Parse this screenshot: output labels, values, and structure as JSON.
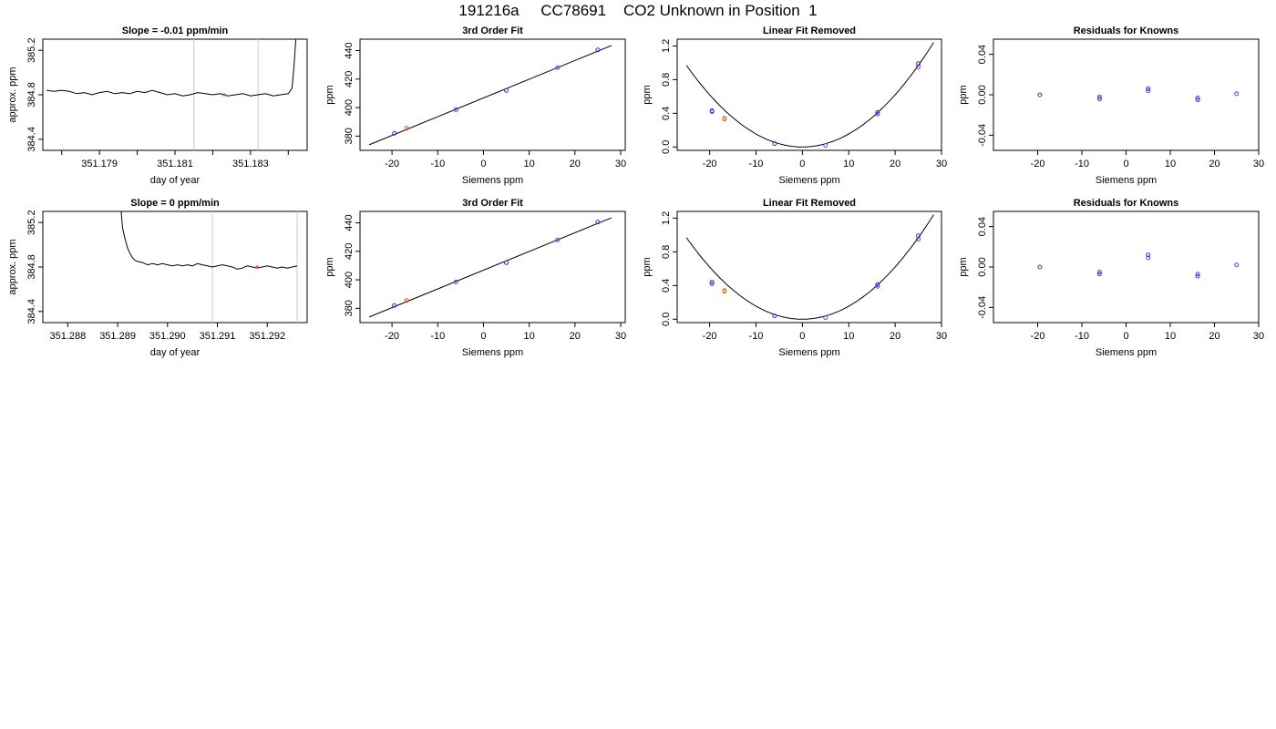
{
  "header": {
    "run_id": "191216a",
    "tank_id": "CC78691",
    "description": "CO2 Unknown in Position  1"
  },
  "colors": {
    "trace": "#000000",
    "marker": "#ff4040",
    "vline": "#c8c8c8",
    "known_blue": "#2a34d8",
    "known_purple": "#8a28e8",
    "unknown_red": "#f04010",
    "unknown_orange": "#f08020"
  },
  "chart_data": [
    {
      "id": "p11",
      "type": "line",
      "title": "Slope =  -0.01  ppm/min",
      "xlabel": "day of year",
      "ylabel": "approx. ppm",
      "xlim": [
        351.1775,
        351.1845
      ],
      "ylim": [
        384.3,
        385.3
      ],
      "xticks": [
        351.178,
        351.179,
        351.18,
        351.181,
        351.182,
        351.183,
        351.184
      ],
      "xticklabels": [
        "",
        "351.179",
        "",
        "351.181",
        "",
        "351.183",
        ""
      ],
      "yticks": [
        384.4,
        384.8,
        385.2
      ],
      "yticklabels": [
        "384.4",
        "384.8",
        "385.2"
      ],
      "trace": [
        [
          351.1776,
          384.84
        ],
        [
          351.1778,
          384.83
        ],
        [
          351.178,
          384.84
        ],
        [
          351.1782,
          384.83
        ],
        [
          351.1784,
          384.81
        ],
        [
          351.1786,
          384.82
        ],
        [
          351.1788,
          384.8
        ],
        [
          351.179,
          384.82
        ],
        [
          351.1792,
          384.83
        ],
        [
          351.1794,
          384.81
        ],
        [
          351.1796,
          384.82
        ],
        [
          351.1798,
          384.81
        ],
        [
          351.18,
          384.83
        ],
        [
          351.1802,
          384.82
        ],
        [
          351.1804,
          384.84
        ],
        [
          351.1806,
          384.82
        ],
        [
          351.1808,
          384.8
        ],
        [
          351.181,
          384.81
        ],
        [
          351.1812,
          384.79
        ],
        [
          351.1814,
          384.8
        ],
        [
          351.1816,
          384.82
        ],
        [
          351.1818,
          384.81
        ],
        [
          351.182,
          384.8
        ],
        [
          351.1822,
          384.81
        ],
        [
          351.1824,
          384.79
        ],
        [
          351.1826,
          384.8
        ],
        [
          351.1828,
          384.81
        ],
        [
          351.183,
          384.79
        ],
        [
          351.1832,
          384.8
        ],
        [
          351.1834,
          384.81
        ],
        [
          351.1836,
          384.79
        ],
        [
          351.1838,
          384.8
        ],
        [
          351.184,
          384.81
        ],
        [
          351.1841,
          384.86
        ],
        [
          351.18415,
          385.05
        ],
        [
          351.1842,
          385.3
        ]
      ],
      "vlines": [
        351.1815,
        351.1832
      ],
      "markers": [
        [
          351.1823,
          384.8
        ]
      ]
    },
    {
      "id": "p12",
      "type": "scatter",
      "title": "3rd Order Fit",
      "xlabel": "Siemens ppm",
      "ylabel": "ppm",
      "xlim": [
        -27,
        31
      ],
      "ylim": [
        370,
        448
      ],
      "xticks": [
        -20,
        -10,
        0,
        10,
        20,
        30
      ],
      "xticklabels": [
        "-20",
        "-10",
        "0",
        "10",
        "20",
        "30"
      ],
      "yticks": [
        380,
        400,
        420,
        440
      ],
      "yticklabels": [
        "380",
        "400",
        "420",
        "440"
      ],
      "fit": "linear",
      "fit_range": [
        -25,
        28
      ],
      "knowns": [
        [
          -19.5,
          382.0
        ],
        [
          -6,
          398.5
        ],
        [
          5,
          412.0
        ],
        [
          16.2,
          428.0
        ],
        [
          25,
          440.5
        ]
      ],
      "unknowns": [
        [
          -16.8,
          385.5
        ]
      ]
    },
    {
      "id": "p13",
      "type": "scatter",
      "title": "Linear Fit Removed",
      "xlabel": "Siemens ppm",
      "ylabel": "ppm",
      "xlim": [
        -27,
        30
      ],
      "ylim": [
        -0.04,
        1.28
      ],
      "xticks": [
        -20,
        -10,
        0,
        10,
        20,
        30
      ],
      "xticklabels": [
        "-20",
        "-10",
        "0",
        "10",
        "20",
        "30"
      ],
      "yticks": [
        0.0,
        0.4,
        0.8,
        1.2
      ],
      "yticklabels": [
        "0.0",
        "0.4",
        "0.8",
        "1.2"
      ],
      "fit": "quadratic",
      "fit_range": [
        -25,
        28.3
      ],
      "knowns": [
        [
          -19.5,
          0.43
        ],
        [
          -19.5,
          0.42
        ],
        [
          -6,
          0.04
        ],
        [
          5,
          0.02
        ],
        [
          16.2,
          0.41
        ],
        [
          16.2,
          0.39
        ],
        [
          25,
          0.99
        ],
        [
          25,
          0.95
        ]
      ],
      "unknowns": [
        [
          -16.8,
          0.34
        ],
        [
          -16.8,
          0.33
        ]
      ]
    },
    {
      "id": "p14",
      "type": "scatter",
      "title": "Residuals for Knowns",
      "xlabel": "Siemens ppm",
      "ylabel": "ppm",
      "xlim": [
        -30,
        30
      ],
      "ylim": [
        -0.055,
        0.055
      ],
      "xticks": [
        -20,
        -10,
        0,
        10,
        20,
        30
      ],
      "xticklabels": [
        "-20",
        "-10",
        "0",
        "10",
        "20",
        "30"
      ],
      "yticks": [
        -0.04,
        0.0,
        0.04
      ],
      "yticklabels": [
        "-0.04",
        "0.00",
        "0.04"
      ],
      "knowns": [
        [
          -19.5,
          0.0
        ],
        [
          -6,
          -0.002
        ],
        [
          -6,
          -0.004
        ],
        [
          5,
          0.004
        ],
        [
          5,
          0.006
        ],
        [
          16.2,
          -0.003
        ],
        [
          16.2,
          -0.005
        ],
        [
          25,
          0.001
        ]
      ]
    },
    {
      "id": "p21",
      "type": "line",
      "title": "Slope =  0  ppm/min",
      "xlabel": "day of year",
      "ylabel": "approx. ppm",
      "xlim": [
        351.2875,
        351.2928
      ],
      "ylim": [
        384.3,
        385.3
      ],
      "xticks": [
        351.288,
        351.289,
        351.29,
        351.291,
        351.292
      ],
      "xticklabels": [
        "351.288",
        "351.289",
        "351.290",
        "351.291",
        "351.292"
      ],
      "yticks": [
        384.4,
        384.8,
        385.2
      ],
      "yticklabels": [
        "384.4",
        "384.8",
        "385.2"
      ],
      "trace": [
        [
          351.28907,
          385.3
        ],
        [
          351.2891,
          385.15
        ],
        [
          351.28915,
          385.05
        ],
        [
          351.2892,
          384.97
        ],
        [
          351.28925,
          384.92
        ],
        [
          351.2893,
          384.88
        ],
        [
          351.28935,
          384.86
        ],
        [
          351.2894,
          384.85
        ],
        [
          351.2895,
          384.84
        ],
        [
          351.2896,
          384.82
        ],
        [
          351.2897,
          384.83
        ],
        [
          351.2898,
          384.82
        ],
        [
          351.2899,
          384.83
        ],
        [
          351.29,
          384.82
        ],
        [
          351.2901,
          384.81
        ],
        [
          351.2902,
          384.82
        ],
        [
          351.2903,
          384.81
        ],
        [
          351.2904,
          384.82
        ],
        [
          351.2905,
          384.81
        ],
        [
          351.2906,
          384.83
        ],
        [
          351.2907,
          384.82
        ],
        [
          351.2908,
          384.81
        ],
        [
          351.2909,
          384.8
        ],
        [
          351.291,
          384.81
        ],
        [
          351.2911,
          384.82
        ],
        [
          351.2912,
          384.81
        ],
        [
          351.2913,
          384.8
        ],
        [
          351.2914,
          384.78
        ],
        [
          351.2915,
          384.79
        ],
        [
          351.2916,
          384.81
        ],
        [
          351.2917,
          384.8
        ],
        [
          351.2918,
          384.79
        ],
        [
          351.2919,
          384.8
        ],
        [
          351.292,
          384.81
        ],
        [
          351.2921,
          384.8
        ],
        [
          351.2922,
          384.79
        ],
        [
          351.2923,
          384.8
        ],
        [
          351.2924,
          384.79
        ],
        [
          351.2925,
          384.8
        ],
        [
          351.2926,
          384.81
        ]
      ],
      "vlines": [
        351.2909,
        351.2926
      ],
      "markers": [
        [
          351.2918,
          384.8
        ]
      ]
    },
    {
      "id": "p22",
      "type": "scatter",
      "title": "3rd Order Fit",
      "xlabel": "Siemens ppm",
      "ylabel": "ppm",
      "xlim": [
        -27,
        31
      ],
      "ylim": [
        370,
        448
      ],
      "xticks": [
        -20,
        -10,
        0,
        10,
        20,
        30
      ],
      "xticklabels": [
        "-20",
        "-10",
        "0",
        "10",
        "20",
        "30"
      ],
      "yticks": [
        380,
        400,
        420,
        440
      ],
      "yticklabels": [
        "380",
        "400",
        "420",
        "440"
      ],
      "fit": "linear",
      "fit_range": [
        -25,
        28
      ],
      "knowns": [
        [
          -19.5,
          382.0
        ],
        [
          -6,
          398.5
        ],
        [
          5,
          412.0
        ],
        [
          16.2,
          428.0
        ],
        [
          25,
          440.5
        ]
      ],
      "unknowns": [
        [
          -16.8,
          385.5
        ]
      ]
    },
    {
      "id": "p23",
      "type": "scatter",
      "title": "Linear Fit Removed",
      "xlabel": "Siemens ppm",
      "ylabel": "ppm",
      "xlim": [
        -27,
        30
      ],
      "ylim": [
        -0.04,
        1.28
      ],
      "xticks": [
        -20,
        -10,
        0,
        10,
        20,
        30
      ],
      "xticklabels": [
        "-20",
        "-10",
        "0",
        "10",
        "20",
        "30"
      ],
      "yticks": [
        0.0,
        0.4,
        0.8,
        1.2
      ],
      "yticklabels": [
        "0.0",
        "0.4",
        "0.8",
        "1.2"
      ],
      "fit": "quadratic",
      "fit_range": [
        -25,
        28.3
      ],
      "knowns": [
        [
          -19.5,
          0.44
        ],
        [
          -19.5,
          0.42
        ],
        [
          -6,
          0.04
        ],
        [
          5,
          0.02
        ],
        [
          16.2,
          0.41
        ],
        [
          16.2,
          0.39
        ],
        [
          25,
          0.99
        ],
        [
          25,
          0.95
        ]
      ],
      "unknowns": [
        [
          -16.8,
          0.34
        ],
        [
          -16.8,
          0.33
        ]
      ]
    },
    {
      "id": "p24",
      "type": "scatter",
      "title": "Residuals for Knowns",
      "xlabel": "Siemens ppm",
      "ylabel": "ppm",
      "xlim": [
        -30,
        30
      ],
      "ylim": [
        -0.055,
        0.055
      ],
      "xticks": [
        -20,
        -10,
        0,
        10,
        20,
        30
      ],
      "xticklabels": [
        "-20",
        "-10",
        "0",
        "10",
        "20",
        "30"
      ],
      "yticks": [
        -0.04,
        0.0,
        0.04
      ],
      "yticklabels": [
        "-0.04",
        "0.00",
        "0.04"
      ],
      "knowns": [
        [
          -19.5,
          0.0
        ],
        [
          -6,
          -0.005
        ],
        [
          -6,
          -0.007
        ],
        [
          5,
          0.009
        ],
        [
          5,
          0.012
        ],
        [
          16.2,
          -0.007
        ],
        [
          16.2,
          -0.009
        ],
        [
          25,
          0.002
        ]
      ]
    }
  ]
}
